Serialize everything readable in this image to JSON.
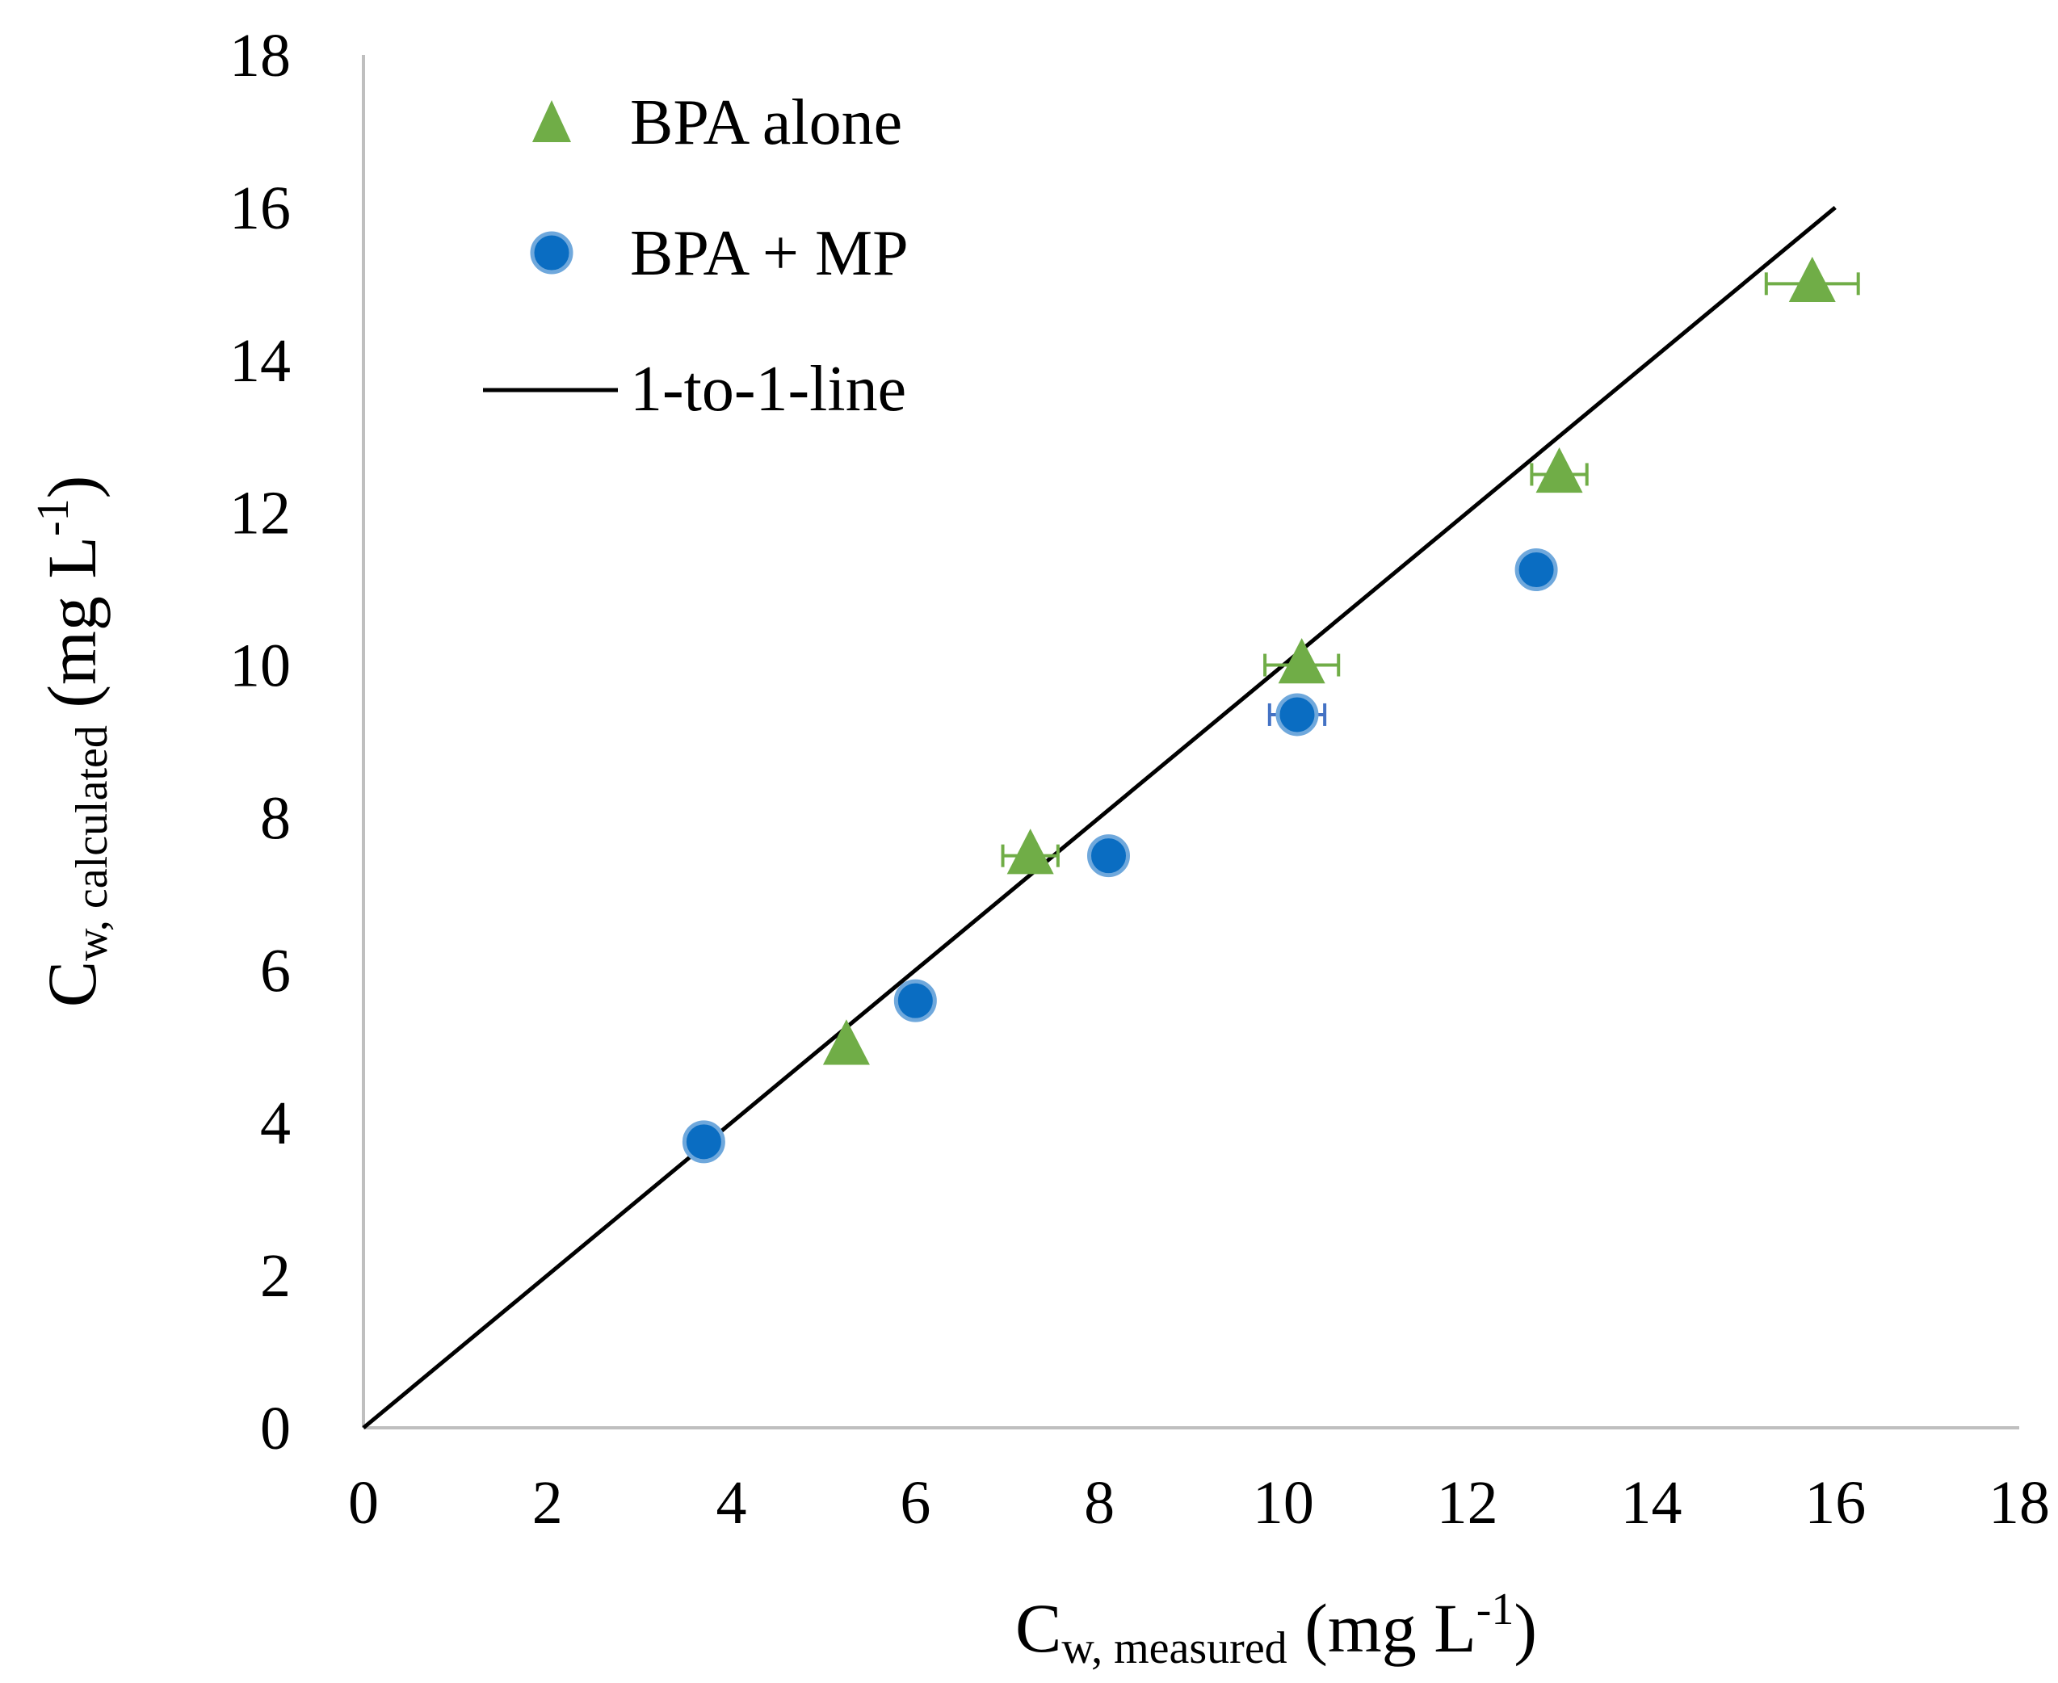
{
  "chart_data": {
    "type": "scatter",
    "title": "",
    "xlabel": {
      "main": "C",
      "sub": "w, measured",
      "unit_prefix": " (mg L",
      "unit_sup": "-1",
      "unit_suffix": ")"
    },
    "ylabel": {
      "main": "C",
      "sub": "w, calculated",
      "unit_prefix": " (mg L",
      "unit_sup": "-1",
      "unit_suffix": ")"
    },
    "xlim": [
      0,
      18
    ],
    "ylim": [
      0,
      18
    ],
    "x_ticks": [
      0,
      2,
      4,
      6,
      8,
      10,
      12,
      14,
      16,
      18
    ],
    "y_ticks": [
      0,
      2,
      4,
      6,
      8,
      10,
      12,
      14,
      16,
      18
    ],
    "x_tick_labels": [
      "0",
      "2",
      "4",
      "6",
      "8",
      "10",
      "12",
      "14",
      "16",
      "18"
    ],
    "y_tick_labels": [
      "0",
      "2",
      "4",
      "6",
      "8",
      "10",
      "12",
      "14",
      "16",
      "18"
    ],
    "grid": false,
    "legend_position": "top-left",
    "series": [
      {
        "name": "BPA alone",
        "marker": "triangle",
        "color": "#70AD47",
        "points": [
          {
            "x": 5.25,
            "y": 5.0,
            "xerr": 0
          },
          {
            "x": 7.25,
            "y": 7.5,
            "xerr": 0.3
          },
          {
            "x": 10.2,
            "y": 10.0,
            "xerr": 0.4
          },
          {
            "x": 13.0,
            "y": 12.5,
            "xerr": 0.3
          },
          {
            "x": 15.75,
            "y": 15.0,
            "xerr": 0.5
          }
        ]
      },
      {
        "name": "BPA + MP",
        "marker": "circle",
        "color": "#0A6DC2",
        "edge_color": "#6FA8DC",
        "error_color": "#4472C4",
        "points": [
          {
            "x": 3.7,
            "y": 3.75,
            "xerr": 0
          },
          {
            "x": 6.0,
            "y": 5.6,
            "xerr": 0
          },
          {
            "x": 8.1,
            "y": 7.5,
            "xerr": 0.15
          },
          {
            "x": 10.15,
            "y": 9.35,
            "xerr": 0.3
          },
          {
            "x": 12.75,
            "y": 11.25,
            "xerr": 0
          }
        ]
      },
      {
        "name": "1-to-1-line",
        "type": "line",
        "color": "#000000",
        "x": [
          0,
          16
        ],
        "y": [
          0,
          16
        ]
      }
    ]
  },
  "legend": {
    "items": [
      {
        "label": "BPA alone",
        "marker": "triangle"
      },
      {
        "label": "BPA + MP",
        "marker": "circle"
      },
      {
        "label": "1-to-1-line",
        "marker": "line"
      }
    ]
  },
  "colors": {
    "axis": "#BFBFBF",
    "triangle": "#70AD47",
    "circle": "#0A6DC2",
    "circle_edge": "#6FA8DC",
    "line": "#000000"
  }
}
